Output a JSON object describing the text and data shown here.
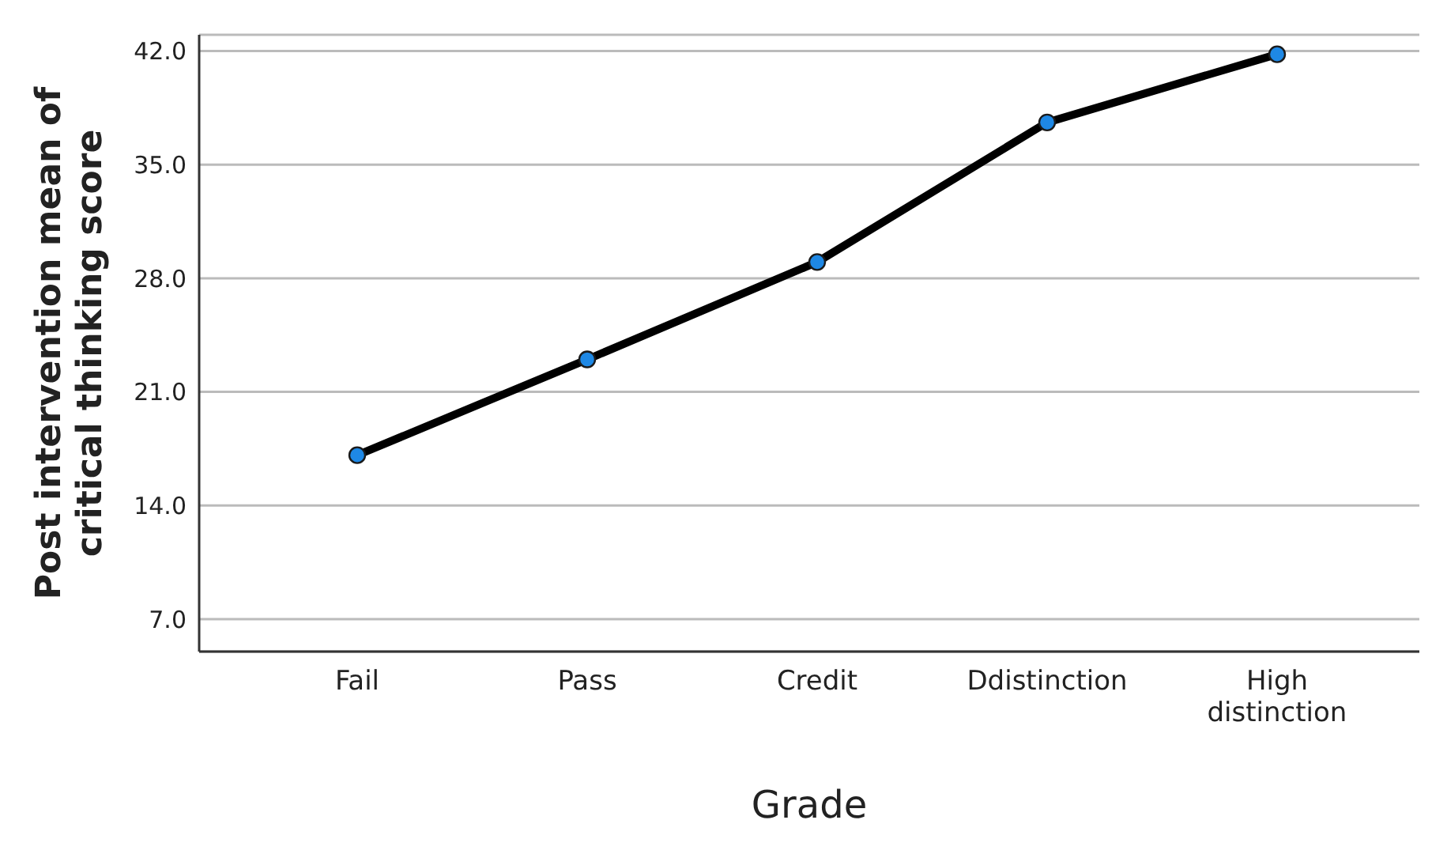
{
  "chart_data": {
    "type": "line",
    "xlabel": "Grade",
    "ylabel": "Post intervention mean of critical thinking score",
    "categories": [
      "Fail",
      "Pass",
      "Credit",
      "Ddistinction",
      "High distinction"
    ],
    "series": [
      {
        "color": "#000000",
        "values": [
          17.1,
          23.0,
          29.0,
          37.6,
          41.8
        ]
      }
    ],
    "ylim": [
      5,
      43
    ],
    "yticks": [
      {
        "value": 7,
        "label": "7.0"
      },
      {
        "value": 14,
        "label": "14.0"
      },
      {
        "value": 21,
        "label": "21.0"
      },
      {
        "value": 28,
        "label": "28.0"
      },
      {
        "value": 35,
        "label": "35.0"
      },
      {
        "value": 42,
        "label": "42.0"
      }
    ],
    "grid": "y",
    "marker": "circle",
    "line_style": "solid",
    "legend": false
  }
}
